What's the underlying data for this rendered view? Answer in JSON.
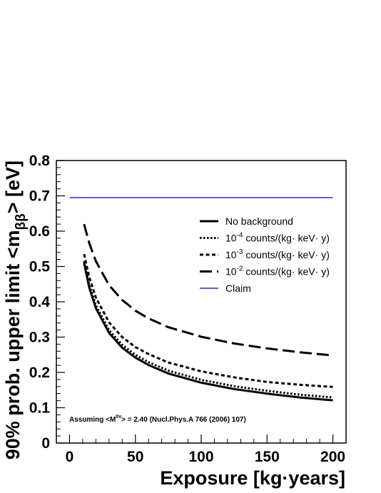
{
  "chart_data": {
    "type": "line",
    "xlabel": "Exposure [kg·years]",
    "ylabel": "90% prob. upper limit <m_ββ> [eV]",
    "xlim": [
      -10,
      210
    ],
    "ylim": [
      0,
      0.8
    ],
    "xticks": [
      0,
      50,
      100,
      150,
      200
    ],
    "xtick_labels": [
      "0",
      "50",
      "100",
      "150",
      "200"
    ],
    "yticks": [
      0,
      0.1,
      0.2,
      0.3,
      0.4,
      0.5,
      0.6,
      0.7,
      0.8
    ],
    "ytick_labels": [
      "0",
      "0.1",
      "0.2",
      "0.3",
      "0.4",
      "0.5",
      "0.6",
      "0.7",
      "0.8"
    ],
    "grid": false,
    "legend_position": "top-right",
    "annotation": "Assuming <M0ν> = 2.40 (Nucl.Phys.A 766 (2006) 107)",
    "series": [
      {
        "name": "No background",
        "style": "solid",
        "color": "#000000",
        "x": [
          11,
          15,
          20,
          30,
          40,
          50,
          60,
          75,
          100,
          125,
          150,
          175,
          200
        ],
        "y": [
          0.51,
          0.44,
          0.382,
          0.312,
          0.27,
          0.242,
          0.221,
          0.197,
          0.171,
          0.153,
          0.14,
          0.129,
          0.121
        ]
      },
      {
        "name": "10-4 counts/(kg· keV· y)",
        "style": "dotted",
        "color": "#000000",
        "x": [
          11,
          15,
          20,
          30,
          40,
          50,
          60,
          75,
          100,
          125,
          150,
          175,
          200
        ],
        "y": [
          0.515,
          0.448,
          0.39,
          0.32,
          0.278,
          0.25,
          0.229,
          0.205,
          0.179,
          0.161,
          0.148,
          0.137,
          0.129
        ]
      },
      {
        "name": "10-3 counts/(kg· keV· y)",
        "style": "dashed",
        "color": "#000000",
        "x": [
          11,
          15,
          20,
          30,
          40,
          50,
          60,
          75,
          100,
          125,
          150,
          175,
          200
        ],
        "y": [
          0.535,
          0.47,
          0.412,
          0.342,
          0.3,
          0.272,
          0.252,
          0.228,
          0.203,
          0.186,
          0.173,
          0.165,
          0.159
        ]
      },
      {
        "name": "10-2 counts/(kg· keV· y)",
        "style": "long-dash",
        "color": "#000000",
        "x": [
          11,
          15,
          20,
          30,
          40,
          50,
          60,
          75,
          100,
          125,
          150,
          175,
          200
        ],
        "y": [
          0.62,
          0.566,
          0.515,
          0.447,
          0.405,
          0.375,
          0.353,
          0.328,
          0.301,
          0.282,
          0.268,
          0.257,
          0.248
        ]
      },
      {
        "name": "Claim",
        "style": "solid",
        "color": "#0000cc",
        "x": [
          0,
          200
        ],
        "y": [
          0.695,
          0.695
        ]
      }
    ]
  }
}
